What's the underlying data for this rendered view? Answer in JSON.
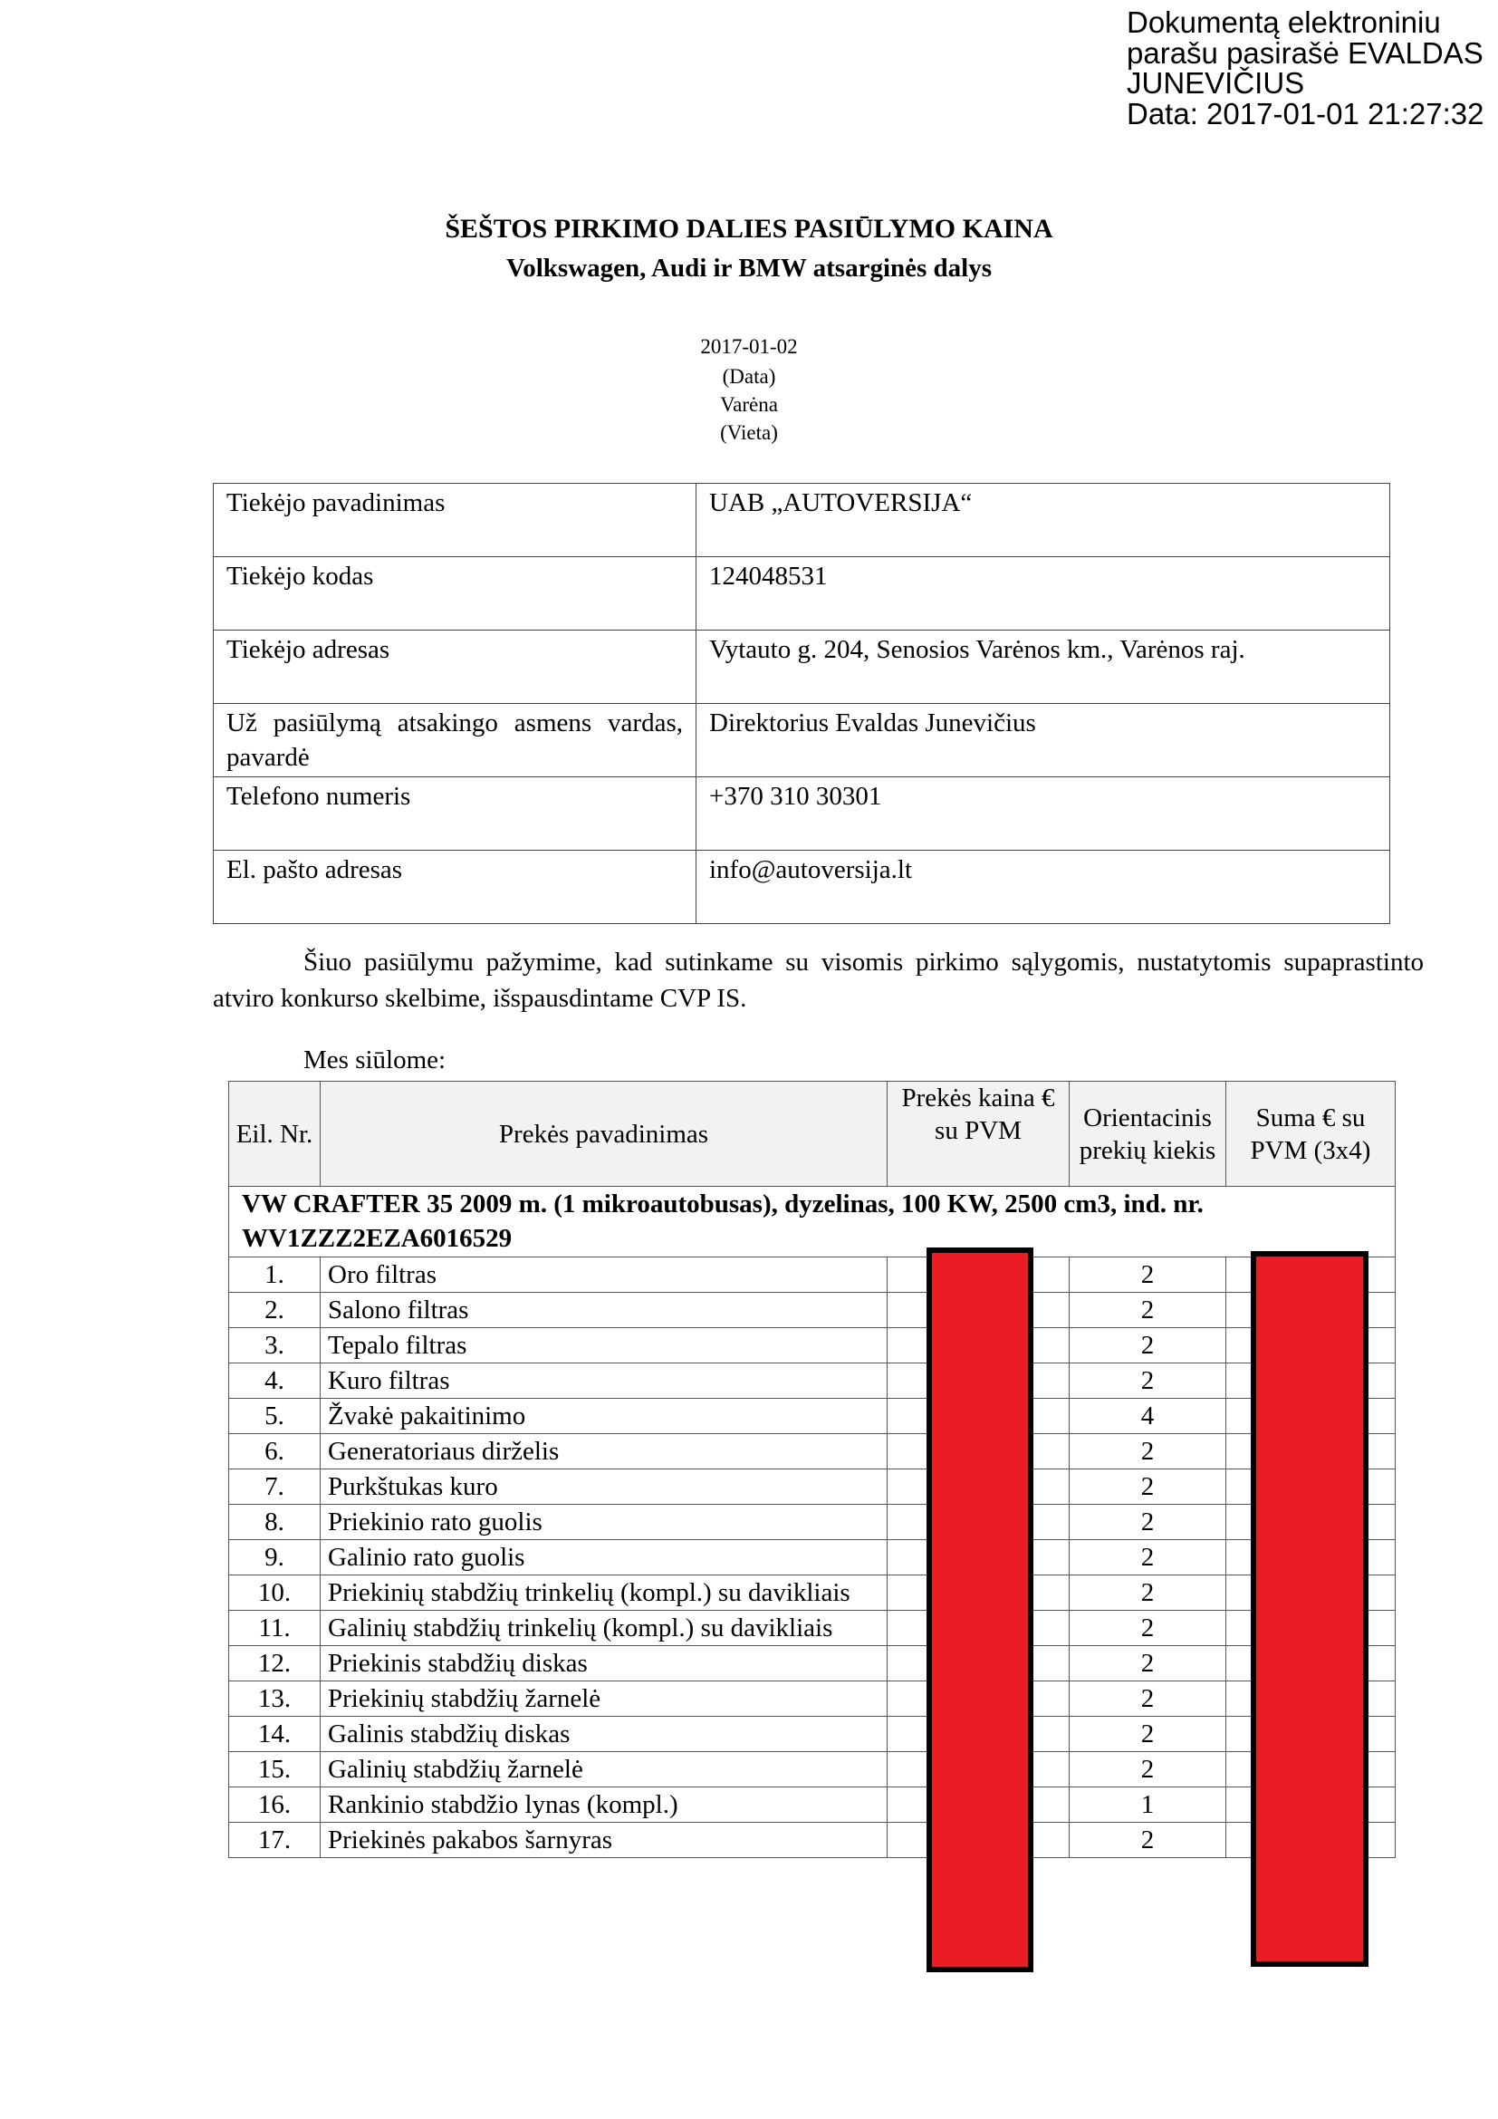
{
  "signature": {
    "lines": [
      "Dokumentą elektroniniu",
      "parašu pasirašė EVALDAS",
      "JUNEVIČIUS",
      "Data: 2017-01-01 21:27:32"
    ]
  },
  "header": {
    "title": "ŠEŠTOS PIRKIMO DALIES PASIŪLYMO KAINA",
    "subtitle": "Volkswagen, Audi ir BMW atsarginės dalys",
    "date": "2017-01-02",
    "date_label": "(Data)",
    "place": "Varėna",
    "place_label": "(Vieta)"
  },
  "supplier": [
    {
      "label": "Tiekėjo pavadinimas",
      "value": "UAB „AUTOVERSIJA“"
    },
    {
      "label": "Tiekėjo kodas",
      "value": "124048531"
    },
    {
      "label": "Tiekėjo adresas",
      "value": "Vytauto g. 204, Senosios Varėnos km., Varėnos raj."
    },
    {
      "label": "Už pasiūlymą atsakingo asmens vardas, pavardė",
      "value": "Direktorius Evaldas Junevičius"
    },
    {
      "label": "Telefono numeris",
      "value": "+370 310 30301"
    },
    {
      "label": "El. pašto adresas",
      "value": "info@autoversija.lt"
    }
  ],
  "paragraph": "Šiuo pasiūlymu pažymime, kad sutinkame su visomis pirkimo sąlygomis, nustatytomis supaprastinto atviro konkurso skelbime, išspausdintame CVP IS.",
  "offer_label": "Mes siūlome:",
  "items_table": {
    "headers": [
      "Eil. Nr.",
      "Prekės pavadinimas",
      "Prekės kaina € su PVM",
      "Orientacinis prekių kiekis",
      "Suma € su PVM (3x4)"
    ],
    "group": "VW CRAFTER 35 2009 m. (1 mikroautobusas), dyzelinas, 100 KW, 2500 cm3, ind. nr. WV1ZZZ2EZA6016529",
    "rows": [
      {
        "nr": "1.",
        "name": "Oro filtras",
        "qty": "2"
      },
      {
        "nr": "2.",
        "name": "Salono filtras",
        "qty": "2"
      },
      {
        "nr": "3.",
        "name": "Tepalo filtras",
        "qty": "2"
      },
      {
        "nr": "4.",
        "name": "Kuro filtras",
        "qty": "2"
      },
      {
        "nr": "5.",
        "name": "Žvakė pakaitinimo",
        "qty": "4"
      },
      {
        "nr": "6.",
        "name": "Generatoriaus dirželis",
        "qty": "2"
      },
      {
        "nr": "7.",
        "name": "Purkštukas kuro",
        "qty": "2"
      },
      {
        "nr": "8.",
        "name": "Priekinio rato guolis",
        "qty": "2"
      },
      {
        "nr": "9.",
        "name": "Galinio rato guolis",
        "qty": "2"
      },
      {
        "nr": "10.",
        "name": "Priekinių stabdžių trinkelių (kompl.) su davikliais",
        "qty": "2"
      },
      {
        "nr": "11.",
        "name": "Galinių stabdžių trinkelių (kompl.) su davikliais",
        "qty": "2"
      },
      {
        "nr": "12.",
        "name": "Priekinis stabdžių diskas",
        "qty": "2"
      },
      {
        "nr": "13.",
        "name": "Priekinių stabdžių žarnelė",
        "qty": "2"
      },
      {
        "nr": "14.",
        "name": "Galinis stabdžių diskas",
        "qty": "2"
      },
      {
        "nr": "15.",
        "name": "Galinių stabdžių žarnelė",
        "qty": "2"
      },
      {
        "nr": "16.",
        "name": "Rankinio stabdžio lynas (kompl.)",
        "qty": "1"
      },
      {
        "nr": "17.",
        "name": "Priekinės pakabos šarnyras",
        "qty": "2"
      }
    ]
  },
  "redaction_color": "#ec1c24"
}
